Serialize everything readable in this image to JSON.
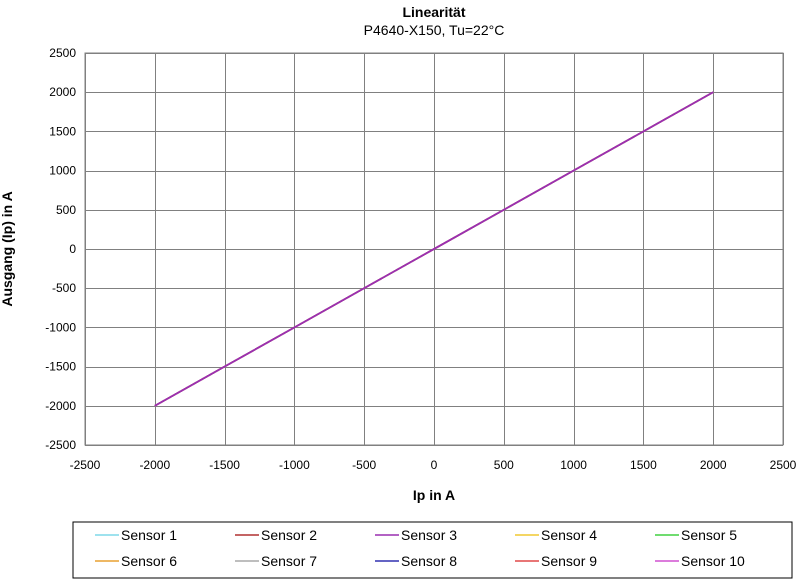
{
  "chart_data": {
    "type": "line",
    "title": "Linearität",
    "subtitle": "P4640-X150, Tu=22°C",
    "xlabel": "Ip in A",
    "ylabel": "Ausgang (Ip) in A",
    "xlim": [
      -2500,
      2500
    ],
    "ylim": [
      -2500,
      2500
    ],
    "xticks": [
      -2500,
      -2000,
      -1500,
      -1000,
      -500,
      0,
      500,
      1000,
      1500,
      2000,
      2500
    ],
    "yticks": [
      -2500,
      -2000,
      -1500,
      -1000,
      -500,
      0,
      500,
      1000,
      1500,
      2000,
      2500
    ],
    "grid": true,
    "legend_position": "bottom",
    "legend_columns": 5,
    "x": [
      -2000,
      -1500,
      -1000,
      -500,
      0,
      500,
      1000,
      1500,
      2000
    ],
    "series": [
      {
        "name": "Sensor 1",
        "color": "#7fd8e8",
        "values": [
          -2000,
          -1500,
          -1000,
          -500,
          0,
          500,
          1000,
          1500,
          2000
        ]
      },
      {
        "name": "Sensor 2",
        "color": "#b03030",
        "values": [
          -2000,
          -1500,
          -1000,
          -500,
          0,
          500,
          1000,
          1500,
          2000
        ]
      },
      {
        "name": "Sensor 3",
        "color": "#9a2fb0",
        "values": [
          -2000,
          -1500,
          -1000,
          -500,
          0,
          500,
          1000,
          1500,
          2000
        ]
      },
      {
        "name": "Sensor 4",
        "color": "#f0c830",
        "values": [
          -2000,
          -1500,
          -1000,
          -500,
          0,
          500,
          1000,
          1500,
          2000
        ]
      },
      {
        "name": "Sensor 5",
        "color": "#40d040",
        "values": [
          -2000,
          -1500,
          -1000,
          -500,
          0,
          500,
          1000,
          1500,
          2000
        ]
      },
      {
        "name": "Sensor 6",
        "color": "#e8a030",
        "values": [
          -2000,
          -1500,
          -1000,
          -500,
          0,
          500,
          1000,
          1500,
          2000
        ]
      },
      {
        "name": "Sensor 7",
        "color": "#a8a8a8",
        "values": [
          -2000,
          -1500,
          -1000,
          -500,
          0,
          500,
          1000,
          1500,
          2000
        ]
      },
      {
        "name": "Sensor 8",
        "color": "#3030b0",
        "values": [
          -2000,
          -1500,
          -1000,
          -500,
          0,
          500,
          1000,
          1500,
          2000
        ]
      },
      {
        "name": "Sensor 9",
        "color": "#e04848",
        "values": [
          -2000,
          -1500,
          -1000,
          -500,
          0,
          500,
          1000,
          1500,
          2000
        ]
      },
      {
        "name": "Sensor 10",
        "color": "#d050d0",
        "values": [
          -2000,
          -1500,
          -1000,
          -500,
          0,
          500,
          1000,
          1500,
          2000
        ]
      }
    ]
  }
}
